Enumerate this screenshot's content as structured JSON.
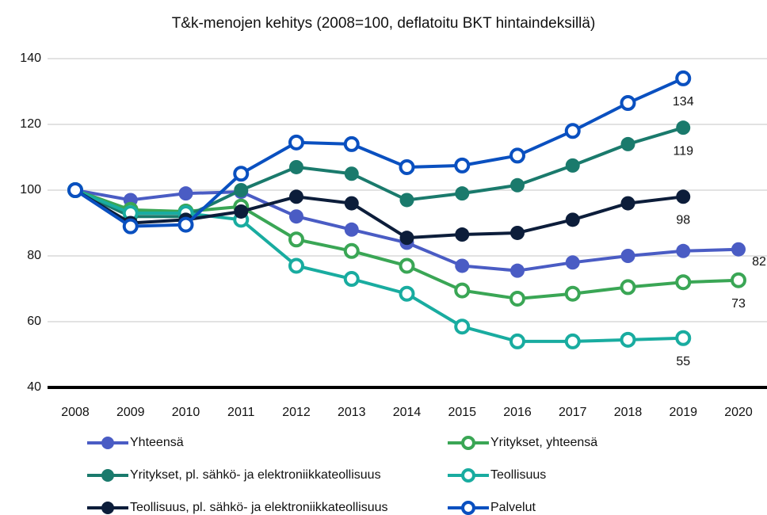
{
  "chart_data": {
    "type": "line",
    "title": "T&k-menojen kehitys (2008=100, deflatoitu BKT hintaindeksillä)",
    "x": [
      "2008",
      "2009",
      "2010",
      "2011",
      "2012",
      "2013",
      "2014",
      "2015",
      "2016",
      "2017",
      "2018",
      "2019",
      "2020"
    ],
    "ylim": [
      40,
      140
    ],
    "yticks": [
      40,
      60,
      80,
      100,
      120,
      140
    ],
    "grid": true,
    "series": [
      {
        "name": "Yhteensä",
        "color": "#4a5cc4",
        "marker": "filled",
        "values": [
          100,
          97,
          99,
          99.5,
          92,
          88,
          84,
          77,
          75.5,
          78,
          80,
          81.5,
          82
        ],
        "value_labels": [
          null,
          null,
          null,
          null,
          null,
          null,
          null,
          null,
          null,
          null,
          null,
          null,
          "82"
        ]
      },
      {
        "name": "Yritykset, yhteensä",
        "color": "#3aa655",
        "marker": "hollow",
        "values": [
          100,
          94,
          93.5,
          95,
          85,
          81.5,
          77,
          69.5,
          67,
          68.5,
          70.5,
          72,
          72.6
        ],
        "value_labels": [
          null,
          null,
          null,
          null,
          null,
          null,
          null,
          null,
          null,
          null,
          null,
          null,
          "73"
        ]
      },
      {
        "name": "Yritykset, pl. sähkö- ja elektroniikkateollisuus",
        "color": "#1a7a6c",
        "marker": "filled",
        "values": [
          100,
          92,
          92,
          100,
          107,
          105,
          97,
          99,
          101.5,
          107.5,
          114,
          119,
          null
        ],
        "value_labels": [
          null,
          null,
          null,
          null,
          null,
          null,
          null,
          null,
          null,
          null,
          null,
          "119",
          null
        ]
      },
      {
        "name": "Teollisuus",
        "color": "#19aca0",
        "marker": "hollow",
        "values": [
          100,
          93,
          93,
          91,
          77,
          73,
          68.5,
          58.5,
          54,
          54,
          54.5,
          55,
          null
        ],
        "value_labels": [
          null,
          null,
          null,
          null,
          null,
          null,
          null,
          null,
          null,
          null,
          null,
          "55",
          null
        ]
      },
      {
        "name": "Teollisuus, pl. sähkö- ja elektroniikkateollisuus",
        "color": "#0c1d3a",
        "marker": "filled",
        "values": [
          100,
          90,
          91,
          93.5,
          98,
          96,
          85.5,
          86.5,
          87,
          91,
          96,
          98,
          null
        ],
        "value_labels": [
          null,
          null,
          null,
          null,
          null,
          null,
          null,
          null,
          null,
          null,
          null,
          "98",
          null
        ]
      },
      {
        "name": "Palvelut",
        "color": "#0a50c0",
        "marker": "hollow",
        "values": [
          100,
          89,
          89.5,
          105,
          114.5,
          114,
          107,
          107.5,
          110.5,
          118,
          126.5,
          134,
          null
        ],
        "value_labels": [
          null,
          null,
          null,
          null,
          null,
          null,
          null,
          null,
          null,
          null,
          null,
          "134",
          null
        ]
      }
    ]
  }
}
